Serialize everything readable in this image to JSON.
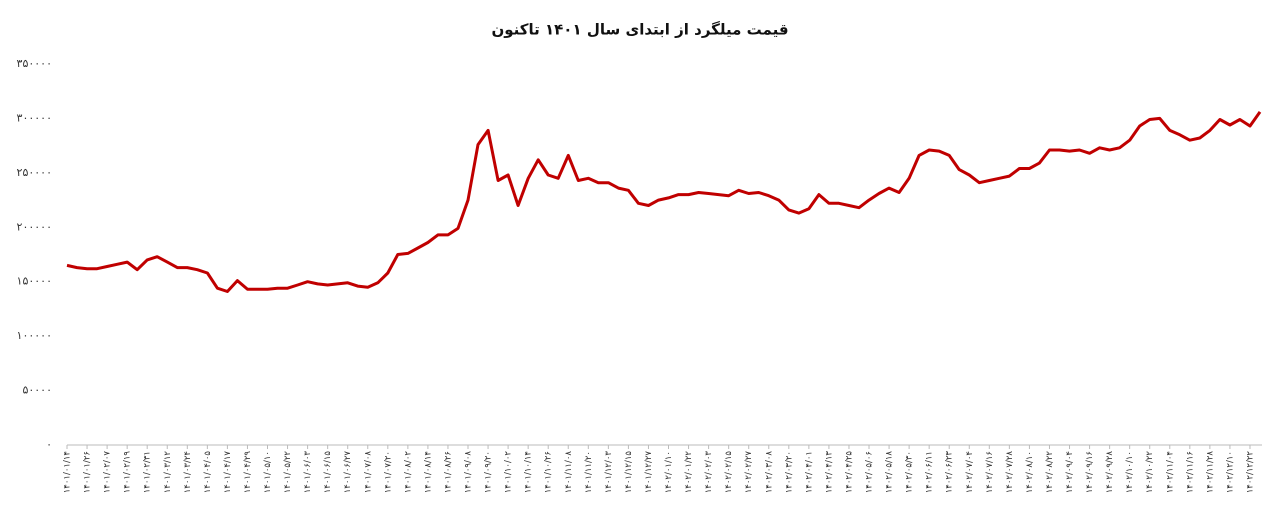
{
  "chart_data": {
    "type": "line",
    "title": "قیمت میلگرد از ابتدای سال ۱۴۰۱ تاکنون",
    "categories": [
      "۱۴۰۱/۰۱/۱۴",
      null,
      "۱۴۰۱/۰۱/۲۶",
      null,
      "۱۴۰۱/۰۲/۰۷",
      null,
      "۱۴۰۱/۰۲/۱۹",
      null,
      "۱۴۰۱/۰۲/۳۱",
      null,
      "۱۴۰۱/۰۳/۱۲",
      null,
      "۱۴۰۱/۰۳/۲۴",
      null,
      "۱۴۰۱/۰۴/۰۵",
      null,
      "۱۴۰۱/۰۴/۱۷",
      null,
      "۱۴۰۱/۰۴/۲۹",
      null,
      "۱۴۰۱/۰۵/۱۰",
      null,
      "۱۴۰۱/۰۵/۲۲",
      null,
      "۱۴۰۱/۰۶/۰۳",
      null,
      "۱۴۰۱/۰۶/۱۵",
      null,
      "۱۴۰۱/۰۶/۲۷",
      null,
      "۱۴۰۱/۰۷/۰۸",
      null,
      "۱۴۰۱/۰۷/۲۰",
      null,
      "۱۴۰۱/۰۸/۰۲",
      null,
      "۱۴۰۱/۰۸/۱۴",
      null,
      "۱۴۰۱/۰۸/۲۶",
      null,
      "۱۴۰۱/۰۹/۰۸",
      null,
      "۱۴۰۱/۰۹/۲۰",
      null,
      "۱۴۰۱/۱۰/۰۲",
      null,
      "۱۴۰۱/۱۰/۱۴",
      null,
      "۱۴۰۱/۱۰/۲۶",
      null,
      "۱۴۰۱/۱۱/۰۸",
      null,
      "۱۴۰۱/۱۱/۲۰",
      null,
      "۱۴۰۱/۱۲/۰۳",
      null,
      "۱۴۰۱/۱۲/۱۵",
      null,
      "۱۴۰۱/۱۲/۲۷",
      null,
      "۱۴۰۲/۰۱/۱۰",
      null,
      "۱۴۰۲/۰۱/۲۲",
      null,
      "۱۴۰۲/۰۲/۰۳",
      null,
      "۱۴۰۲/۰۲/۱۵",
      null,
      "۱۴۰۲/۰۲/۲۷",
      null,
      "۱۴۰۲/۰۳/۰۸",
      null,
      "۱۴۰۲/۰۳/۲۰",
      null,
      "۱۴۰۲/۰۴/۰۱",
      null,
      "۱۴۰۲/۰۴/۱۳",
      null,
      "۱۴۰۲/۰۴/۲۵",
      null,
      "۱۴۰۲/۰۵/۰۶",
      null,
      "۱۴۰۲/۰۵/۱۸",
      null,
      "۱۴۰۲/۰۵/۳۰",
      null,
      "۱۴۰۲/۰۶/۱۱",
      null,
      "۱۴۰۲/۰۶/۲۳",
      null,
      "۱۴۰۲/۰۷/۰۴",
      null,
      "۱۴۰۲/۰۷/۱۶",
      null,
      "۱۴۰۲/۰۷/۲۸",
      null,
      "۱۴۰۲/۰۸/۱۰",
      null,
      "۱۴۰۲/۰۸/۲۲",
      null,
      "۱۴۰۲/۰۹/۰۴",
      null,
      "۱۴۰۲/۰۹/۱۶",
      null,
      "۱۴۰۲/۰۹/۲۸",
      null,
      "۱۴۰۲/۱۰/۱۰",
      null,
      "۱۴۰۲/۱۰/۲۲",
      null,
      "۱۴۰۲/۱۱/۰۴",
      null,
      "۱۴۰۲/۱۱/۱۶",
      null,
      "۱۴۰۲/۱۱/۲۸",
      null,
      "۱۴۰۲/۱۲/۱۰",
      null,
      "۱۴۰۲/۱۲/۲۲",
      null
    ],
    "values": [
      165000,
      163000,
      162000,
      162000,
      164000,
      166000,
      168000,
      161000,
      170000,
      173000,
      168000,
      163000,
      163000,
      161000,
      158000,
      144000,
      141000,
      151000,
      143000,
      143000,
      143000,
      144000,
      144000,
      147000,
      150000,
      148000,
      147000,
      148000,
      149000,
      146000,
      145000,
      149000,
      158000,
      175000,
      176000,
      181000,
      186000,
      193000,
      193000,
      199000,
      225000,
      276000,
      289000,
      243000,
      248000,
      220000,
      245000,
      262000,
      248000,
      245000,
      266000,
      243000,
      245000,
      241000,
      241000,
      236000,
      234000,
      222000,
      220000,
      225000,
      227000,
      230000,
      230000,
      232000,
      231000,
      230000,
      229000,
      234000,
      231000,
      232000,
      229000,
      225000,
      216000,
      213000,
      217000,
      230000,
      222000,
      222000,
      220000,
      218000,
      225000,
      231000,
      236000,
      232000,
      245000,
      266000,
      271000,
      270000,
      266000,
      253000,
      248000,
      241000,
      243000,
      245000,
      247000,
      254000,
      254000,
      259000,
      271000,
      271000,
      270000,
      271000,
      268000,
      273000,
      271000,
      273000,
      280000,
      293000,
      299000,
      300000,
      289000,
      285000,
      280000,
      282000,
      289000,
      299000,
      294000,
      299000,
      293000,
      306000
    ],
    "color": "#c00000",
    "ylim": [
      0,
      350000
    ],
    "yticks": [
      {
        "value": 0,
        "label": "۰"
      },
      {
        "value": 50000,
        "label": "۵۰۰۰۰"
      },
      {
        "value": 100000,
        "label": "۱۰۰۰۰۰"
      },
      {
        "value": 150000,
        "label": "۱۵۰۰۰۰"
      },
      {
        "value": 200000,
        "label": "۲۰۰۰۰۰"
      },
      {
        "value": 250000,
        "label": "۲۵۰۰۰۰"
      },
      {
        "value": 300000,
        "label": "۳۰۰۰۰۰"
      },
      {
        "value": 350000,
        "label": "۳۵۰۰۰۰"
      }
    ],
    "grid": false
  }
}
